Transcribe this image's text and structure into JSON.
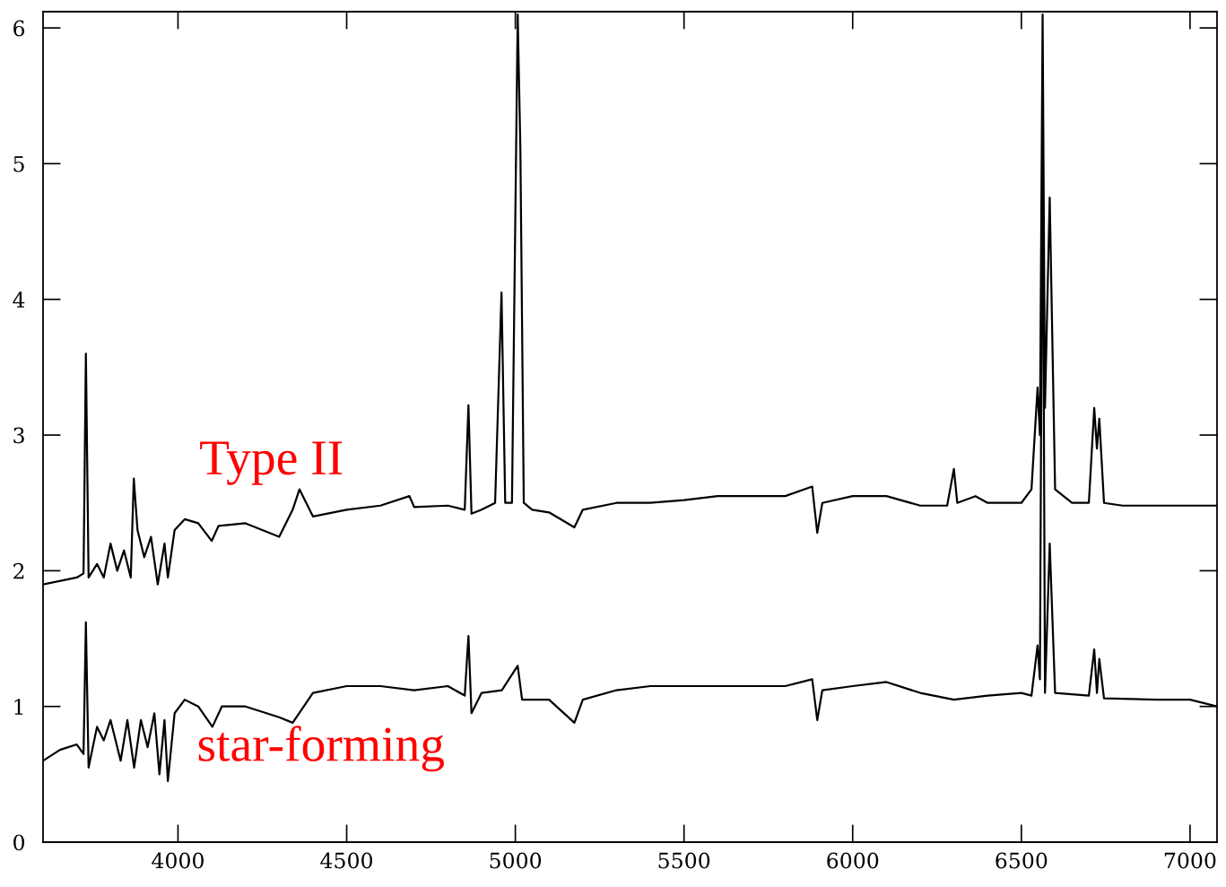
{
  "chart_data": {
    "type": "line",
    "xlim": [
      3600,
      7080
    ],
    "ylim": [
      0,
      6.12
    ],
    "xticks": [
      4000,
      4500,
      5000,
      5500,
      6000,
      6500,
      7000
    ],
    "yticks": [
      0,
      1,
      2,
      3,
      4,
      5,
      6
    ],
    "grid": false,
    "legend": false,
    "marker": "none",
    "line_style": "solid",
    "series": [
      {
        "name": "Type II",
        "color": "#000000",
        "x": [
          3600,
          3700,
          3720,
          3727,
          3735,
          3760,
          3780,
          3800,
          3820,
          3840,
          3860,
          3869,
          3880,
          3900,
          3920,
          3940,
          3960,
          3970,
          3990,
          4020,
          4060,
          4100,
          4120,
          4200,
          4300,
          4340,
          4360,
          4400,
          4500,
          4600,
          4686,
          4700,
          4800,
          4850,
          4861,
          4870,
          4900,
          4940,
          4959,
          4970,
          4990,
          5007,
          5015,
          5025,
          5050,
          5100,
          5175,
          5200,
          5300,
          5400,
          5500,
          5600,
          5700,
          5800,
          5880,
          5895,
          5910,
          6000,
          6100,
          6200,
          6280,
          6300,
          6310,
          6364,
          6400,
          6500,
          6530,
          6548,
          6555,
          6563,
          6570,
          6584,
          6600,
          6650,
          6700,
          6716,
          6724,
          6731,
          6745,
          6800,
          6900,
          7000,
          7080
        ],
        "values": [
          1.9,
          1.95,
          1.98,
          3.6,
          1.95,
          2.05,
          1.95,
          2.2,
          2.0,
          2.15,
          1.95,
          2.68,
          2.3,
          2.1,
          2.25,
          1.9,
          2.2,
          1.95,
          2.3,
          2.38,
          2.35,
          2.22,
          2.33,
          2.35,
          2.25,
          2.45,
          2.6,
          2.4,
          2.45,
          2.48,
          2.55,
          2.47,
          2.48,
          2.45,
          3.22,
          2.42,
          2.45,
          2.5,
          4.05,
          2.5,
          2.5,
          6.1,
          5.1,
          2.5,
          2.45,
          2.43,
          2.32,
          2.45,
          2.5,
          2.5,
          2.52,
          2.55,
          2.55,
          2.55,
          2.62,
          2.28,
          2.5,
          2.55,
          2.55,
          2.48,
          2.48,
          2.75,
          2.5,
          2.55,
          2.5,
          2.5,
          2.6,
          3.35,
          3.0,
          6.1,
          3.2,
          4.75,
          2.6,
          2.5,
          2.5,
          3.2,
          2.9,
          3.12,
          2.5,
          2.48,
          2.48,
          2.48,
          2.48
        ]
      },
      {
        "name": "star-forming",
        "color": "#000000",
        "x": [
          3600,
          3650,
          3700,
          3720,
          3727,
          3735,
          3760,
          3780,
          3800,
          3830,
          3850,
          3870,
          3890,
          3910,
          3930,
          3945,
          3960,
          3970,
          3990,
          4020,
          4060,
          4102,
          4130,
          4200,
          4300,
          4340,
          4400,
          4500,
          4600,
          4700,
          4800,
          4850,
          4861,
          4870,
          4900,
          4960,
          5007,
          5020,
          5100,
          5175,
          5200,
          5300,
          5400,
          5500,
          5600,
          5700,
          5800,
          5880,
          5895,
          5910,
          6000,
          6100,
          6200,
          6300,
          6400,
          6500,
          6530,
          6548,
          6555,
          6563,
          6570,
          6584,
          6600,
          6700,
          6716,
          6724,
          6731,
          6745,
          6900,
          7000,
          7080
        ],
        "values": [
          0.6,
          0.68,
          0.72,
          0.65,
          1.62,
          0.55,
          0.85,
          0.75,
          0.9,
          0.6,
          0.9,
          0.55,
          0.9,
          0.7,
          0.95,
          0.5,
          0.9,
          0.45,
          0.95,
          1.05,
          1.0,
          0.85,
          1.0,
          1.0,
          0.92,
          0.88,
          1.1,
          1.15,
          1.15,
          1.12,
          1.15,
          1.08,
          1.52,
          0.95,
          1.1,
          1.12,
          1.3,
          1.05,
          1.05,
          0.88,
          1.05,
          1.12,
          1.15,
          1.15,
          1.15,
          1.15,
          1.15,
          1.2,
          0.9,
          1.12,
          1.15,
          1.18,
          1.1,
          1.05,
          1.08,
          1.1,
          1.08,
          1.45,
          1.2,
          5.4,
          1.1,
          2.2,
          1.1,
          1.08,
          1.42,
          1.1,
          1.35,
          1.06,
          1.05,
          1.05,
          1.0
        ]
      }
    ]
  }
}
